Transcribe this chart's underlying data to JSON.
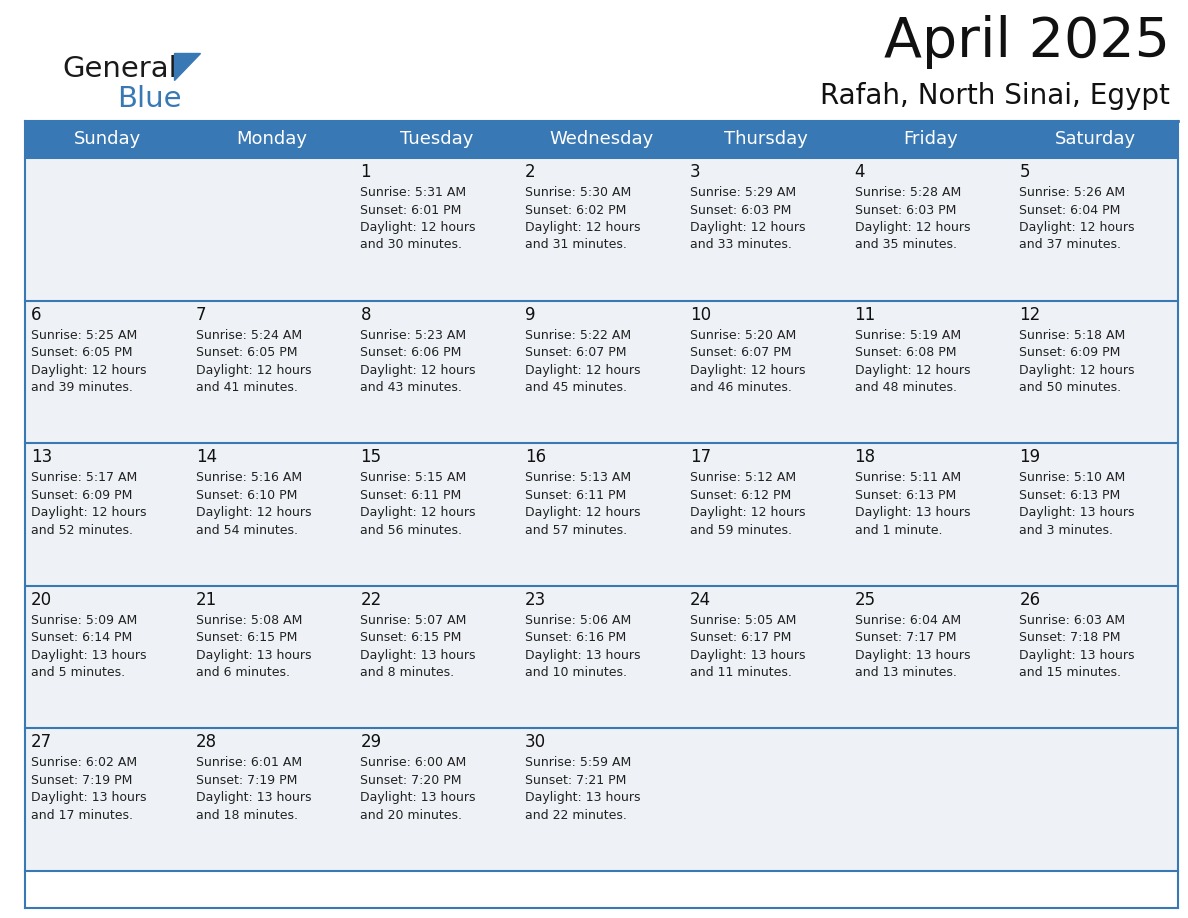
{
  "title": "April 2025",
  "subtitle": "Rafah, North Sinai, Egypt",
  "header_bg": "#3878b4",
  "header_text": "#ffffff",
  "day_names": [
    "Sunday",
    "Monday",
    "Tuesday",
    "Wednesday",
    "Thursday",
    "Friday",
    "Saturday"
  ],
  "cell_bg": "#eef2f7",
  "cell_bg_empty": "#eef2f7",
  "border_color": "#3878b4",
  "line_color": "#3878b4",
  "day_num_color": "#111111",
  "info_color": "#222222",
  "calendar": [
    [
      {
        "day": "",
        "info": ""
      },
      {
        "day": "",
        "info": ""
      },
      {
        "day": "1",
        "info": "Sunrise: 5:31 AM\nSunset: 6:01 PM\nDaylight: 12 hours\nand 30 minutes."
      },
      {
        "day": "2",
        "info": "Sunrise: 5:30 AM\nSunset: 6:02 PM\nDaylight: 12 hours\nand 31 minutes."
      },
      {
        "day": "3",
        "info": "Sunrise: 5:29 AM\nSunset: 6:03 PM\nDaylight: 12 hours\nand 33 minutes."
      },
      {
        "day": "4",
        "info": "Sunrise: 5:28 AM\nSunset: 6:03 PM\nDaylight: 12 hours\nand 35 minutes."
      },
      {
        "day": "5",
        "info": "Sunrise: 5:26 AM\nSunset: 6:04 PM\nDaylight: 12 hours\nand 37 minutes."
      }
    ],
    [
      {
        "day": "6",
        "info": "Sunrise: 5:25 AM\nSunset: 6:05 PM\nDaylight: 12 hours\nand 39 minutes."
      },
      {
        "day": "7",
        "info": "Sunrise: 5:24 AM\nSunset: 6:05 PM\nDaylight: 12 hours\nand 41 minutes."
      },
      {
        "day": "8",
        "info": "Sunrise: 5:23 AM\nSunset: 6:06 PM\nDaylight: 12 hours\nand 43 minutes."
      },
      {
        "day": "9",
        "info": "Sunrise: 5:22 AM\nSunset: 6:07 PM\nDaylight: 12 hours\nand 45 minutes."
      },
      {
        "day": "10",
        "info": "Sunrise: 5:20 AM\nSunset: 6:07 PM\nDaylight: 12 hours\nand 46 minutes."
      },
      {
        "day": "11",
        "info": "Sunrise: 5:19 AM\nSunset: 6:08 PM\nDaylight: 12 hours\nand 48 minutes."
      },
      {
        "day": "12",
        "info": "Sunrise: 5:18 AM\nSunset: 6:09 PM\nDaylight: 12 hours\nand 50 minutes."
      }
    ],
    [
      {
        "day": "13",
        "info": "Sunrise: 5:17 AM\nSunset: 6:09 PM\nDaylight: 12 hours\nand 52 minutes."
      },
      {
        "day": "14",
        "info": "Sunrise: 5:16 AM\nSunset: 6:10 PM\nDaylight: 12 hours\nand 54 minutes."
      },
      {
        "day": "15",
        "info": "Sunrise: 5:15 AM\nSunset: 6:11 PM\nDaylight: 12 hours\nand 56 minutes."
      },
      {
        "day": "16",
        "info": "Sunrise: 5:13 AM\nSunset: 6:11 PM\nDaylight: 12 hours\nand 57 minutes."
      },
      {
        "day": "17",
        "info": "Sunrise: 5:12 AM\nSunset: 6:12 PM\nDaylight: 12 hours\nand 59 minutes."
      },
      {
        "day": "18",
        "info": "Sunrise: 5:11 AM\nSunset: 6:13 PM\nDaylight: 13 hours\nand 1 minute."
      },
      {
        "day": "19",
        "info": "Sunrise: 5:10 AM\nSunset: 6:13 PM\nDaylight: 13 hours\nand 3 minutes."
      }
    ],
    [
      {
        "day": "20",
        "info": "Sunrise: 5:09 AM\nSunset: 6:14 PM\nDaylight: 13 hours\nand 5 minutes."
      },
      {
        "day": "21",
        "info": "Sunrise: 5:08 AM\nSunset: 6:15 PM\nDaylight: 13 hours\nand 6 minutes."
      },
      {
        "day": "22",
        "info": "Sunrise: 5:07 AM\nSunset: 6:15 PM\nDaylight: 13 hours\nand 8 minutes."
      },
      {
        "day": "23",
        "info": "Sunrise: 5:06 AM\nSunset: 6:16 PM\nDaylight: 13 hours\nand 10 minutes."
      },
      {
        "day": "24",
        "info": "Sunrise: 5:05 AM\nSunset: 6:17 PM\nDaylight: 13 hours\nand 11 minutes."
      },
      {
        "day": "25",
        "info": "Sunrise: 6:04 AM\nSunset: 7:17 PM\nDaylight: 13 hours\nand 13 minutes."
      },
      {
        "day": "26",
        "info": "Sunrise: 6:03 AM\nSunset: 7:18 PM\nDaylight: 13 hours\nand 15 minutes."
      }
    ],
    [
      {
        "day": "27",
        "info": "Sunrise: 6:02 AM\nSunset: 7:19 PM\nDaylight: 13 hours\nand 17 minutes."
      },
      {
        "day": "28",
        "info": "Sunrise: 6:01 AM\nSunset: 7:19 PM\nDaylight: 13 hours\nand 18 minutes."
      },
      {
        "day": "29",
        "info": "Sunrise: 6:00 AM\nSunset: 7:20 PM\nDaylight: 13 hours\nand 20 minutes."
      },
      {
        "day": "30",
        "info": "Sunrise: 5:59 AM\nSunset: 7:21 PM\nDaylight: 13 hours\nand 22 minutes."
      },
      {
        "day": "",
        "info": ""
      },
      {
        "day": "",
        "info": ""
      },
      {
        "day": "",
        "info": ""
      }
    ]
  ],
  "logo_text1": "General",
  "logo_text2": "Blue",
  "logo_color1": "#1a1a1a",
  "logo_color2": "#3878b4",
  "title_fontsize": 40,
  "subtitle_fontsize": 20,
  "header_fontsize": 13,
  "daynum_fontsize": 12,
  "info_fontsize": 9
}
